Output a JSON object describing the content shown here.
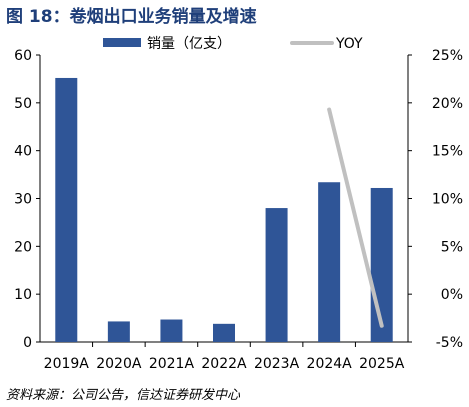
{
  "figure": {
    "title": "图 18：卷烟出口业务销量及增速",
    "source": "资料来源：公司公告，信达证券研发中心"
  },
  "chart_data": {
    "type": "bar",
    "categories": [
      "2019A",
      "2020A",
      "2021A",
      "2022A",
      "2023A",
      "2024A",
      "2025A"
    ],
    "series": [
      {
        "name": "销量（亿支）",
        "type": "bar",
        "axis": "left",
        "color": "#2f5597",
        "values": [
          55.2,
          4.3,
          4.7,
          3.8,
          28.0,
          33.4,
          32.2
        ]
      },
      {
        "name": "YOY",
        "type": "line",
        "axis": "right",
        "color": "#c0c0c0",
        "values": [
          null,
          null,
          null,
          null,
          null,
          19.3,
          -3.3
        ]
      }
    ],
    "ylim": [
      0,
      60
    ],
    "y_ticks": [
      0,
      10,
      20,
      30,
      40,
      50,
      60
    ],
    "y2lim": [
      -5,
      25
    ],
    "y2_ticks": [
      -5,
      0,
      5,
      10,
      15,
      20,
      25
    ],
    "y2_unit": "%",
    "legend_position": "top",
    "grid": false
  }
}
